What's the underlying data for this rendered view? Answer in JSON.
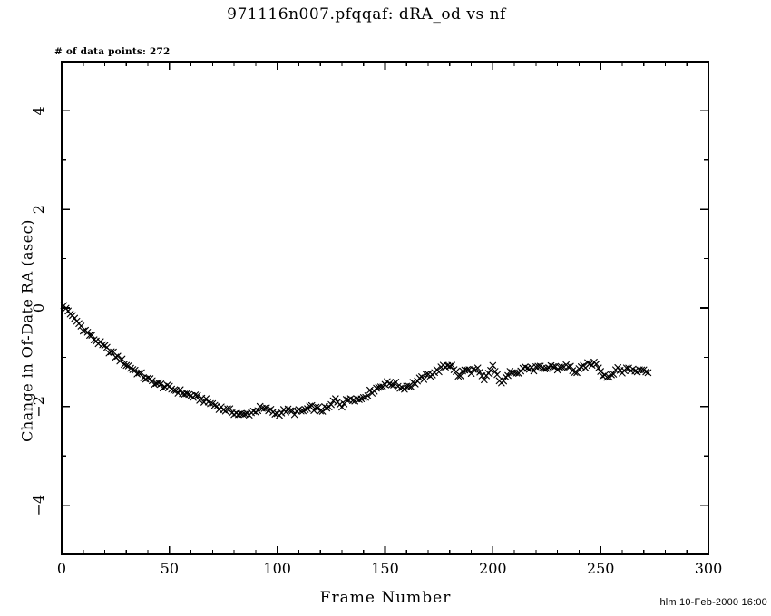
{
  "page": {
    "title": "971116n007.pfqqaf: dRA_od vs nf",
    "annotation": "# of data points: 272",
    "timestamp": "hlm 10-Feb-2000 16:00"
  },
  "chart_data": {
    "type": "scatter",
    "title": "971116n007.pfqqaf: dRA_od vs nf",
    "xlabel": "Frame Number",
    "ylabel": "Change in Of-Date RA (asec)",
    "xlim": [
      0,
      300
    ],
    "ylim": [
      -5,
      5
    ],
    "x_major_ticks": [
      0,
      50,
      100,
      150,
      200,
      250,
      300
    ],
    "x_minor_step": 10,
    "y_major_ticks": [
      -4,
      -2,
      0,
      2,
      4
    ],
    "y_minor_step": 1,
    "grid": false,
    "legend": "none",
    "marker": "x",
    "marker_color": "#000000",
    "n_points": 272,
    "x_start": 1,
    "x_step": 1,
    "noise_amplitude": 0.05,
    "series_anchors": [
      [
        1,
        0.04
      ],
      [
        3,
        -0.06
      ],
      [
        6,
        -0.22
      ],
      [
        10,
        -0.42
      ],
      [
        15,
        -0.63
      ],
      [
        20,
        -0.8
      ],
      [
        25,
        -0.97
      ],
      [
        30,
        -1.15
      ],
      [
        35,
        -1.3
      ],
      [
        40,
        -1.45
      ],
      [
        45,
        -1.55
      ],
      [
        50,
        -1.63
      ],
      [
        55,
        -1.7
      ],
      [
        60,
        -1.78
      ],
      [
        65,
        -1.85
      ],
      [
        70,
        -1.95
      ],
      [
        75,
        -2.05
      ],
      [
        80,
        -2.12
      ],
      [
        84,
        -2.18
      ],
      [
        88,
        -2.12
      ],
      [
        92,
        -2.04
      ],
      [
        96,
        -2.07
      ],
      [
        100,
        -2.15
      ],
      [
        104,
        -2.08
      ],
      [
        108,
        -2.12
      ],
      [
        112,
        -2.09
      ],
      [
        116,
        -2.02
      ],
      [
        120,
        -2.07
      ],
      [
        124,
        -2.03
      ],
      [
        127,
        -1.85
      ],
      [
        130,
        -1.97
      ],
      [
        134,
        -1.82
      ],
      [
        138,
        -1.86
      ],
      [
        142,
        -1.74
      ],
      [
        146,
        -1.63
      ],
      [
        150,
        -1.54
      ],
      [
        154,
        -1.53
      ],
      [
        158,
        -1.62
      ],
      [
        162,
        -1.56
      ],
      [
        166,
        -1.46
      ],
      [
        170,
        -1.37
      ],
      [
        174,
        -1.28
      ],
      [
        178,
        -1.18
      ],
      [
        181,
        -1.14
      ],
      [
        184,
        -1.4
      ],
      [
        187,
        -1.26
      ],
      [
        190,
        -1.28
      ],
      [
        193,
        -1.26
      ],
      [
        196,
        -1.48
      ],
      [
        200,
        -1.18
      ],
      [
        203,
        -1.5
      ],
      [
        206,
        -1.44
      ],
      [
        209,
        -1.27
      ],
      [
        212,
        -1.28
      ],
      [
        215,
        -1.2
      ],
      [
        218,
        -1.25
      ],
      [
        221,
        -1.21
      ],
      [
        224,
        -1.27
      ],
      [
        227,
        -1.17
      ],
      [
        230,
        -1.23
      ],
      [
        233,
        -1.17
      ],
      [
        236,
        -1.21
      ],
      [
        239,
        -1.32
      ],
      [
        242,
        -1.19
      ],
      [
        245,
        -1.14
      ],
      [
        248,
        -1.11
      ],
      [
        251,
        -1.34
      ],
      [
        254,
        -1.4
      ],
      [
        257,
        -1.24
      ],
      [
        260,
        -1.29
      ],
      [
        263,
        -1.21
      ],
      [
        266,
        -1.29
      ],
      [
        269,
        -1.24
      ],
      [
        272,
        -1.27
      ]
    ]
  }
}
